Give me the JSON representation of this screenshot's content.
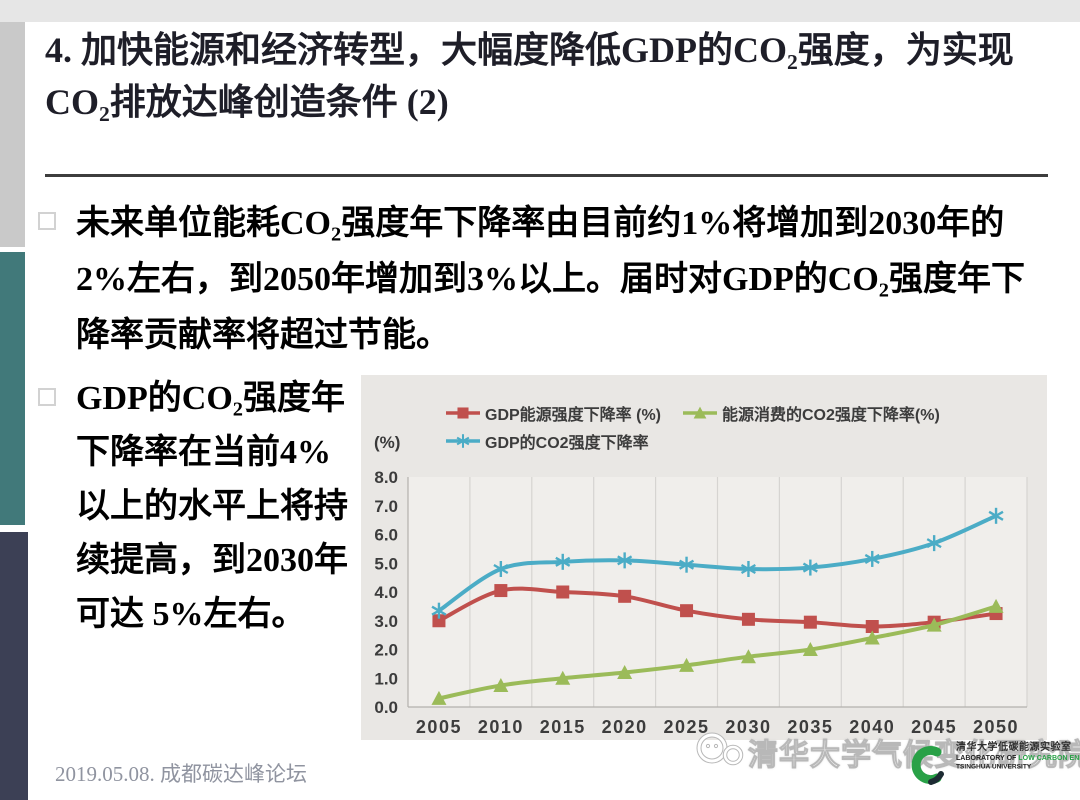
{
  "slide": {
    "title": "4. 加快能源和经济转型，大幅度降低GDP的CO₂强度，为实现CO₂排放达峰创造条件 (2)",
    "bullets": [
      "未来单位能耗CO₂强度年下降率由目前约1%将增加到2030年的2%左右，到2050年增加到3%以上。届时对GDP的CO₂强度年下降率贡献率将超过节能。",
      "GDP的CO₂强度年下降率在当前4%以上的水平上将持续提高，到2030年可达 5%左右。"
    ],
    "footer": "2019.05.08. 成都碳达峰论坛",
    "watermark_text": "清华大学气候变化研究院",
    "logo": {
      "cn": "清华大学低碳能源实验室",
      "en_prefix": "LABORATORY OF ",
      "en_green": "LOW CARBON ENERGY",
      "en_sub": "TSINGHUA UNIVERSITY"
    },
    "accent_colors": {
      "top_strip": "#e6e6e6",
      "left_bar_gray": "#c9c9c9",
      "left_bar_teal": "#41797a",
      "left_bar_navy": "#3c4055",
      "logo_green": "#29a147"
    }
  },
  "chart_data": {
    "type": "line",
    "title": "",
    "xlabel": "",
    "ylabel": "(%)",
    "categories": [
      "2005",
      "2010",
      "2015",
      "2020",
      "2025",
      "2030",
      "2035",
      "2040",
      "2045",
      "2050"
    ],
    "ylim": [
      0,
      8
    ],
    "yticks": [
      "0.0",
      "1.0",
      "2.0",
      "3.0",
      "4.0",
      "5.0",
      "6.0",
      "7.0",
      "8.0"
    ],
    "grid": "vertical",
    "legend_position": "top",
    "series": [
      {
        "name": "GDP能源强度下降率 (%)",
        "marker": "square",
        "color": "#c0504d",
        "values": [
          3.0,
          4.05,
          4.0,
          3.85,
          3.35,
          3.05,
          2.95,
          2.8,
          2.95,
          3.25
        ]
      },
      {
        "name": "能源消费的CO2强度下降率(%)",
        "marker": "triangle",
        "color": "#9bbb59",
        "values": [
          0.3,
          0.75,
          1.0,
          1.2,
          1.45,
          1.75,
          2.0,
          2.4,
          2.85,
          3.5
        ]
      },
      {
        "name": "GDP的CO2强度下降率",
        "marker": "asterisk",
        "color": "#4bacc6",
        "values": [
          3.35,
          4.8,
          5.05,
          5.1,
          4.95,
          4.8,
          4.85,
          5.15,
          5.7,
          6.65
        ]
      }
    ]
  }
}
